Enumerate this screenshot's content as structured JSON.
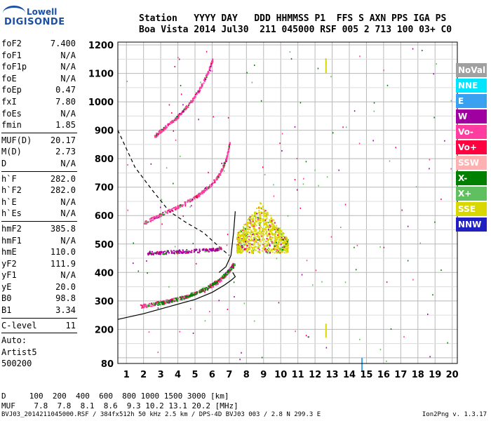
{
  "header": {
    "row1": "Station   YYYY DAY   DDD HHMMSS P1  FFS S AXN PPS IGA PS",
    "row2": "Boa Vista 2014 Jul30  211 045000 RSF 005 2 713 100 03+ C0"
  },
  "logo": {
    "line1": "Lowell",
    "line2": "DIGISONDE"
  },
  "params_group1": [
    {
      "k": "foF2",
      "v": "7.400"
    },
    {
      "k": "foF1",
      "v": "N/A"
    },
    {
      "k": "foF1p",
      "v": "N/A"
    },
    {
      "k": "foE",
      "v": "N/A"
    },
    {
      "k": "foEp",
      "v": "0.47"
    },
    {
      "k": "fxI",
      "v": "7.80"
    },
    {
      "k": "foEs",
      "v": "N/A"
    },
    {
      "k": "fmin",
      "v": "1.85"
    }
  ],
  "params_group2": [
    {
      "k": "MUF(D)",
      "v": "20.17"
    },
    {
      "k": "M(D)",
      "v": "2.73"
    },
    {
      "k": "D",
      "v": "N/A"
    }
  ],
  "params_group3": [
    {
      "k": "h`F",
      "v": "282.0"
    },
    {
      "k": "h`F2",
      "v": "282.0"
    },
    {
      "k": "h`E",
      "v": "N/A"
    },
    {
      "k": "h`Es",
      "v": "N/A"
    }
  ],
  "params_group4": [
    {
      "k": "hmF2",
      "v": "385.8"
    },
    {
      "k": "hmF1",
      "v": "N/A"
    },
    {
      "k": "hmE",
      "v": "110.0"
    },
    {
      "k": "yF2",
      "v": "111.9"
    },
    {
      "k": "yF1",
      "v": "N/A"
    },
    {
      "k": "yE",
      "v": "20.0"
    },
    {
      "k": "B0",
      "v": "98.8"
    },
    {
      "k": "B1",
      "v": "3.34"
    }
  ],
  "params_group5": [
    {
      "k": "C-level",
      "v": "11"
    }
  ],
  "auto": {
    "line1": "Auto:",
    "line2": "Artist5",
    "line3": "500200"
  },
  "legend": [
    {
      "label": "NoVal",
      "color": "#a0a0a0"
    },
    {
      "label": "NNE",
      "color": "#00e5ff"
    },
    {
      "label": "E",
      "color": "#3aa0f0"
    },
    {
      "label": "W",
      "color": "#a000a0"
    },
    {
      "label": "Vo-",
      "color": "#ff3ca0"
    },
    {
      "label": "Vo+",
      "color": "#ff0040"
    },
    {
      "label": "SSW",
      "color": "#ffb0b0"
    },
    {
      "label": "X-",
      "color": "#008000"
    },
    {
      "label": "X+",
      "color": "#60c060"
    },
    {
      "label": "SSE",
      "color": "#d8d800"
    },
    {
      "label": "NNW",
      "color": "#2020c0"
    }
  ],
  "footer": {
    "d_row": "D     100  200  400  600  800 1000 1500 3000 [km]",
    "muf_row": "MUF    7.8  7.8  8.1  8.6  9.3 10.2 13.1 20.2 [MHz]",
    "info": "BVJ03_2014211045000.RSF / 384fx512h 50 kHz 2.5 km / DPS-4D BVJ03 003 / 2.8 N 299.3 E",
    "version": "Ion2Png v. 1.3.17"
  },
  "chart_data": {
    "type": "scatter",
    "xlim": [
      0.5,
      20.3
    ],
    "ylim": [
      80,
      1210
    ],
    "xticks": [
      1,
      2,
      3,
      4,
      5,
      6,
      7,
      8,
      9,
      10,
      11,
      12,
      13,
      14,
      15,
      16,
      17,
      18,
      19,
      20
    ],
    "yticks": [
      80,
      200,
      300,
      400,
      500,
      600,
      700,
      800,
      900,
      1000,
      1100,
      1200
    ],
    "grid": true,
    "traces": [
      {
        "name": "F2 O-trace 1st hop",
        "color": "#ff3ca0",
        "points": [
          [
            1.8,
            283
          ],
          [
            2.5,
            290
          ],
          [
            3.5,
            302
          ],
          [
            4.5,
            318
          ],
          [
            5.5,
            340
          ],
          [
            6.2,
            362
          ],
          [
            6.7,
            390
          ],
          [
            7.0,
            410
          ],
          [
            7.2,
            430
          ]
        ]
      },
      {
        "name": "F2 X-trace 1st hop",
        "color": "#008000",
        "points": [
          [
            2.6,
            290
          ],
          [
            3.6,
            302
          ],
          [
            4.6,
            320
          ],
          [
            5.6,
            345
          ],
          [
            6.4,
            375
          ],
          [
            6.9,
            405
          ],
          [
            7.3,
            430
          ]
        ]
      },
      {
        "name": "2nd hop",
        "color": "#ff3ca0",
        "points": [
          [
            2.0,
            575
          ],
          [
            2.8,
            600
          ],
          [
            3.6,
            622
          ],
          [
            4.4,
            645
          ],
          [
            5.2,
            675
          ],
          [
            5.9,
            710
          ],
          [
            6.4,
            745
          ],
          [
            6.8,
            800
          ],
          [
            7.0,
            855
          ]
        ]
      },
      {
        "name": "3rd hop",
        "color": "#ff3ca0",
        "points": [
          [
            2.6,
            880
          ],
          [
            3.2,
            910
          ],
          [
            3.9,
            945
          ],
          [
            4.6,
            990
          ],
          [
            5.2,
            1040
          ],
          [
            5.7,
            1100
          ],
          [
            6.0,
            1150
          ]
        ]
      },
      {
        "name": "Es band",
        "color": "#a000a0",
        "points": [
          [
            2.2,
            470
          ],
          [
            3.0,
            472
          ],
          [
            4.0,
            475
          ],
          [
            5.0,
            478
          ],
          [
            6.0,
            482
          ],
          [
            6.5,
            487
          ]
        ]
      },
      {
        "name": "spread cluster",
        "color": "#d8d800",
        "points": [
          [
            7.5,
            510
          ],
          [
            8.0,
            560
          ],
          [
            8.5,
            600
          ],
          [
            9.0,
            570
          ],
          [
            9.5,
            520
          ],
          [
            10.0,
            500
          ],
          [
            8.2,
            500
          ],
          [
            9.2,
            620
          ],
          [
            8.8,
            530
          ]
        ]
      }
    ],
    "profile": [
      [
        0.5,
        235
      ],
      [
        2,
        255
      ],
      [
        3.5,
        280
      ],
      [
        5,
        305
      ],
      [
        6,
        330
      ],
      [
        6.7,
        355
      ],
      [
        7.1,
        372
      ],
      [
        7.35,
        385
      ],
      [
        7.2,
        400
      ]
    ],
    "profile_upper": [
      [
        6.4,
        400
      ],
      [
        6.8,
        420
      ],
      [
        7.1,
        460
      ],
      [
        7.25,
        540
      ],
      [
        7.35,
        615
      ]
    ],
    "dashed_curve": [
      [
        0.5,
        900
      ],
      [
        1.5,
        770
      ],
      [
        2.5,
        690
      ],
      [
        3.5,
        615
      ],
      [
        4.5,
        575
      ],
      [
        5.5,
        540
      ],
      [
        6.5,
        485
      ],
      [
        7.0,
        460
      ]
    ]
  }
}
